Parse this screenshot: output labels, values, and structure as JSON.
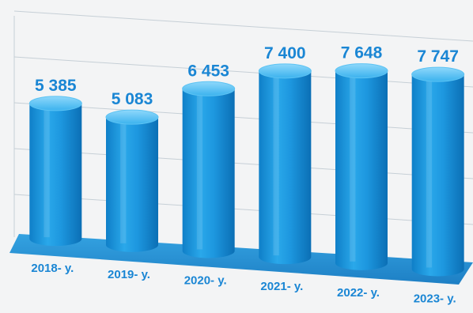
{
  "chart_data": {
    "type": "bar",
    "categories": [
      "2018- y.",
      "2019- y.",
      "2020- y.",
      "2021- y.",
      "2022- y.",
      "2023- y."
    ],
    "values": [
      5385,
      5083,
      6453,
      7400,
      7648,
      7747
    ],
    "value_labels": [
      "5 385",
      "5 083",
      "6 453",
      "7 400",
      "7 648",
      "7 747"
    ],
    "title": "",
    "xlabel": "",
    "ylabel": "",
    "grid": true,
    "style": "3d-cylinder",
    "colors": {
      "bar": "#1b9ae0",
      "bar_light": "#7fd0f7",
      "bar_dark": "#0a6cb0",
      "label": "#1a86d4",
      "floor": "#1e8fd6",
      "grid": "#c6cfd6"
    }
  }
}
